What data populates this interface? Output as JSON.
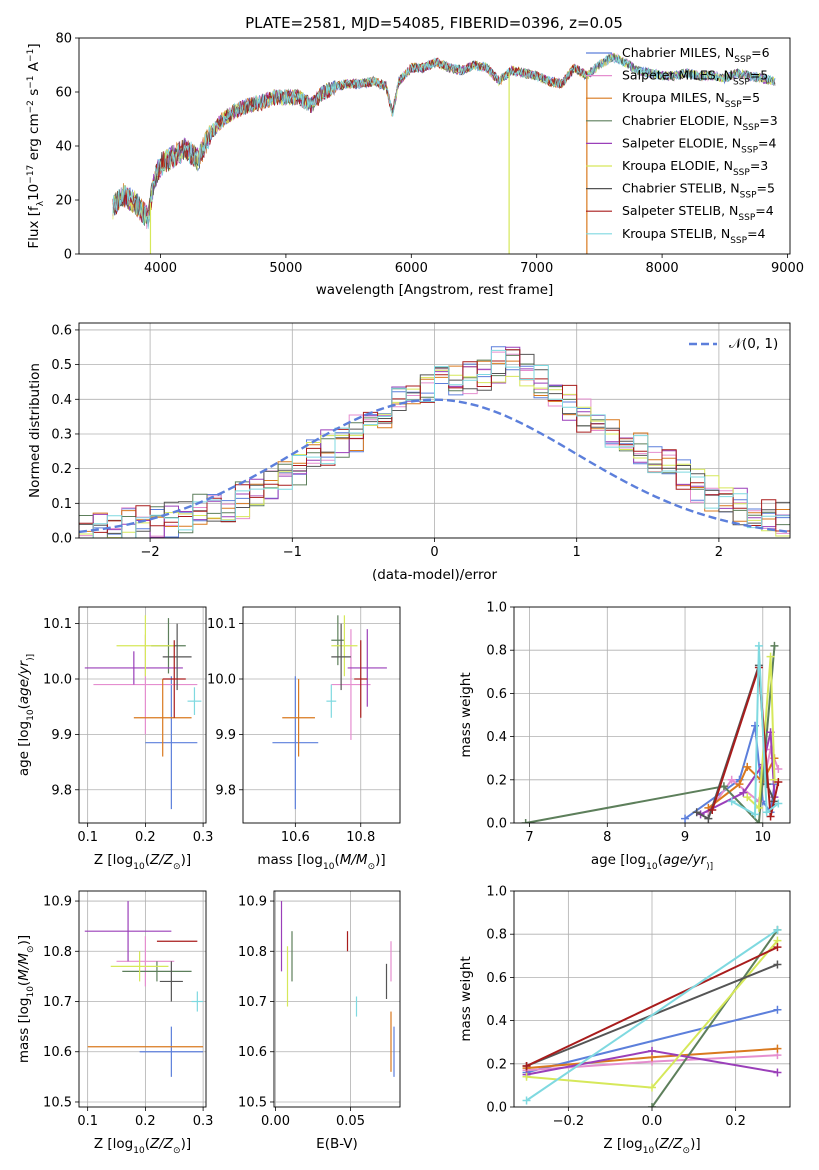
{
  "title": "PLATE=2581, MJD=54085, FIBERID=0396, z=0.05",
  "models": [
    {
      "name": "Chabrier MILES",
      "nssp": "6",
      "color": "#5c7fdb"
    },
    {
      "name": "Salpeter MILES",
      "nssp": "5",
      "color": "#e58ecf"
    },
    {
      "name": "Kroupa MILES",
      "nssp": "5",
      "color": "#d9791f"
    },
    {
      "name": "Chabrier ELODIE",
      "nssp": "3",
      "color": "#5d7f5b"
    },
    {
      "name": "Salpeter ELODIE",
      "nssp": "4",
      "color": "#9a3fb9"
    },
    {
      "name": "Kroupa ELODIE",
      "nssp": "3",
      "color": "#d6e85a"
    },
    {
      "name": "Chabrier STELIB",
      "nssp": "5",
      "color": "#555555"
    },
    {
      "name": "Salpeter STELIB",
      "nssp": "4",
      "color": "#a81c1c"
    },
    {
      "name": "Kroupa STELIB",
      "nssp": "4",
      "color": "#7fd9e0"
    }
  ],
  "legend_prefix": "N",
  "legend_sub": "SSP",
  "chart_data": [
    {
      "type": "line",
      "panel": "spectrum",
      "xlabel": "wavelength [Angstrom, rest frame]",
      "ylabel": "Flux [f",
      "ylabel_parts": [
        "Flux [f",
        "λ",
        "10",
        "−17",
        " erg cm",
        "−2",
        " s",
        "−1",
        " A",
        "−1",
        "]"
      ],
      "xlim": [
        3350,
        9020
      ],
      "ylim": [
        0,
        80
      ],
      "xticks": [
        "4000",
        "5000",
        "6000",
        "7000",
        "8000",
        "9000"
      ],
      "yticks": [
        "0",
        "20",
        "40",
        "60",
        "80"
      ],
      "x": [
        3620,
        3700,
        3800,
        3900,
        3950,
        4000,
        4100,
        4200,
        4300,
        4400,
        4500,
        4600,
        4700,
        4800,
        4900,
        5000,
        5100,
        5200,
        5300,
        5400,
        5500,
        5600,
        5700,
        5800,
        5850,
        5900,
        6000,
        6100,
        6200,
        6300,
        6400,
        6500,
        6600,
        6700,
        6800,
        6900,
        7000,
        7100,
        7200,
        7300,
        7400,
        7500,
        7600,
        7700,
        7800,
        7900,
        8000,
        8100,
        8200,
        8300,
        8400,
        8500,
        8600,
        8700,
        8800,
        8900
      ],
      "flux": [
        17,
        22,
        19,
        13,
        28,
        33,
        36,
        39,
        35,
        45,
        50,
        53,
        55,
        56,
        58,
        58,
        58,
        55,
        60,
        62,
        63,
        63,
        64,
        62,
        52,
        64,
        69,
        69,
        71,
        69,
        68,
        70,
        69,
        64,
        68,
        67,
        66,
        64,
        63,
        69,
        66,
        70,
        73,
        71,
        68,
        67,
        66,
        66,
        67,
        66,
        66,
        65,
        67,
        66,
        65,
        64
      ],
      "drops": [
        {
          "x": 3920,
          "model": 5
        },
        {
          "x": 6780,
          "model": 5
        },
        {
          "x": 7400,
          "model": 2
        }
      ]
    },
    {
      "type": "histogram",
      "panel": "residuals",
      "xlabel": "(data-model)/error",
      "ylabel": "Normed distribution",
      "xlim": [
        -2.5,
        2.5
      ],
      "ylim": [
        0,
        0.62
      ],
      "xticks": [
        "−2",
        "−1",
        "0",
        "1",
        "2"
      ],
      "yticks": [
        "0.0",
        "0.1",
        "0.2",
        "0.3",
        "0.4",
        "0.5",
        "0.6"
      ],
      "gaussian_label": "𝒩(0, 1)",
      "bin_width": 0.1,
      "bin_start": -2.5,
      "base": [
        0.02,
        0.025,
        0.03,
        0.035,
        0.045,
        0.05,
        0.055,
        0.06,
        0.075,
        0.09,
        0.1,
        0.11,
        0.13,
        0.15,
        0.17,
        0.2,
        0.23,
        0.26,
        0.28,
        0.3,
        0.34,
        0.37,
        0.39,
        0.41,
        0.43,
        0.45,
        0.45,
        0.47,
        0.48,
        0.5,
        0.52,
        0.48,
        0.45,
        0.42,
        0.39,
        0.35,
        0.32,
        0.3,
        0.27,
        0.25,
        0.22,
        0.2,
        0.18,
        0.15,
        0.13,
        0.11,
        0.09,
        0.07,
        0.06,
        0.05
      ],
      "gaussian": {
        "mu": 0,
        "sigma": 1
      }
    },
    {
      "type": "scatter",
      "panel": "age-vs-Z",
      "xlabel": "Z [log",
      "xlabel_parts": [
        "Z [log",
        "10",
        "(",
        "Z/Z",
        "⊙",
        ")]"
      ],
      "ylabel_parts": [
        "age  [log",
        "10",
        "(",
        "age/yr",
        ")]"
      ],
      "xlim": [
        0.085,
        0.305
      ],
      "ylim": [
        9.74,
        10.13
      ],
      "xticks": [
        "0.1",
        "0.2",
        "0.3"
      ],
      "yticks": [
        "9.8",
        "9.9",
        "10.0",
        "10.1"
      ],
      "points": [
        {
          "model": 0,
          "x": 0.245,
          "y": 9.885,
          "xerr": 0.045,
          "yerr": 0.12
        },
        {
          "model": 1,
          "x": 0.2,
          "y": 9.99,
          "xerr": 0.09,
          "yerr": 0.09
        },
        {
          "model": 2,
          "x": 0.23,
          "y": 9.93,
          "xerr": 0.05,
          "yerr": 0.07
        },
        {
          "model": 3,
          "x": 0.24,
          "y": 10.06,
          "xerr": 0.03,
          "yerr": 0.05
        },
        {
          "model": 4,
          "x": 0.18,
          "y": 10.02,
          "xerr": 0.085,
          "yerr": 0.03
        },
        {
          "model": 5,
          "x": 0.2,
          "y": 10.06,
          "xerr": 0.05,
          "yerr": 0.055
        },
        {
          "model": 6,
          "x": 0.255,
          "y": 10.04,
          "xerr": 0.025,
          "yerr": 0.06
        },
        {
          "model": 7,
          "x": 0.25,
          "y": 10.0,
          "xerr": 0.02,
          "yerr": 0.07
        },
        {
          "model": 8,
          "x": 0.285,
          "y": 9.96,
          "xerr": 0.012,
          "yerr": 0.025
        }
      ]
    },
    {
      "type": "scatter",
      "panel": "age-vs-mass",
      "xlabel_parts": [
        "mass [log",
        "10",
        "(",
        "M/M",
        "⊙",
        ")]"
      ],
      "xlim": [
        10.44,
        10.92
      ],
      "ylim": [
        9.74,
        10.13
      ],
      "xticks": [
        "10.6",
        "10.8"
      ],
      "yticks": [
        "9.8",
        "9.9",
        "10.0",
        "10.1"
      ],
      "points": [
        {
          "model": 0,
          "x": 10.6,
          "y": 9.885,
          "xerr": 0.07,
          "yerr": 0.12
        },
        {
          "model": 1,
          "x": 10.77,
          "y": 9.99,
          "xerr": 0.06,
          "yerr": 0.1
        },
        {
          "model": 2,
          "x": 10.61,
          "y": 9.93,
          "xerr": 0.05,
          "yerr": 0.07
        },
        {
          "model": 3,
          "x": 10.73,
          "y": 10.07,
          "xerr": 0.02,
          "yerr": 0.045
        },
        {
          "model": 4,
          "x": 10.82,
          "y": 10.02,
          "xerr": 0.06,
          "yerr": 0.07
        },
        {
          "model": 5,
          "x": 10.75,
          "y": 10.06,
          "xerr": 0.04,
          "yerr": 0.055
        },
        {
          "model": 6,
          "x": 10.74,
          "y": 10.04,
          "xerr": 0.03,
          "yerr": 0.06
        },
        {
          "model": 7,
          "x": 10.8,
          "y": 10.0,
          "xerr": 0.02,
          "yerr": 0.07
        },
        {
          "model": 8,
          "x": 10.71,
          "y": 9.96,
          "xerr": 0.015,
          "yerr": 0.03
        }
      ]
    },
    {
      "type": "line",
      "panel": "mass-weight-vs-age",
      "xlabel_parts": [
        "age  [log",
        "10",
        "(",
        "age/yr",
        ")]"
      ],
      "ylabel": "mass weight",
      "xlim": [
        6.8,
        10.35
      ],
      "ylim": [
        0,
        1.0
      ],
      "xticks": [
        "7",
        "8",
        "9",
        "10"
      ],
      "yticks": [
        "0.0",
        "0.2",
        "0.4",
        "0.6",
        "0.8",
        "1.0"
      ],
      "series": [
        {
          "model": 0,
          "x": [
            9.0,
            9.7,
            9.9,
            10.0,
            10.1,
            10.15
          ],
          "y": [
            0.02,
            0.2,
            0.45,
            0.1,
            0.05,
            0.18
          ]
        },
        {
          "model": 1,
          "x": [
            9.3,
            9.6,
            9.95,
            10.1,
            10.2
          ],
          "y": [
            0.05,
            0.2,
            0.1,
            0.34,
            0.25
          ]
        },
        {
          "model": 2,
          "x": [
            9.3,
            9.7,
            9.8,
            10.0,
            10.15
          ],
          "y": [
            0.07,
            0.18,
            0.26,
            0.19,
            0.3
          ]
        },
        {
          "model": 3,
          "x": [
            6.95,
            9.5,
            9.95,
            10.15
          ],
          "y": [
            0.0,
            0.17,
            0.0,
            0.82
          ]
        },
        {
          "model": 4,
          "x": [
            9.2,
            9.75,
            10.0,
            10.1,
            10.15
          ],
          "y": [
            0.04,
            0.14,
            0.27,
            0.42,
            0.12
          ]
        },
        {
          "model": 5,
          "x": [
            9.8,
            9.95,
            10.1,
            10.15
          ],
          "y": [
            0.12,
            0.07,
            0.77,
            0.2
          ]
        },
        {
          "model": 6,
          "x": [
            9.15,
            9.3,
            9.95,
            10.05,
            10.15
          ],
          "y": [
            0.05,
            0.02,
            0.73,
            0.18,
            0.1
          ]
        },
        {
          "model": 7,
          "x": [
            9.35,
            9.95,
            10.1,
            10.2
          ],
          "y": [
            0.06,
            0.72,
            0.03,
            0.19
          ]
        },
        {
          "model": 8,
          "x": [
            9.6,
            9.9,
            9.95,
            10.05,
            10.2
          ],
          "y": [
            0.1,
            0.04,
            0.82,
            0.05,
            0.09
          ]
        }
      ]
    },
    {
      "type": "scatter",
      "panel": "mass-vs-Z",
      "xlabel_parts": [
        "Z [log",
        "10",
        "(",
        "Z/Z",
        "⊙",
        ")]"
      ],
      "ylabel_parts": [
        "mass [log",
        "10",
        "(",
        "M/M",
        "⊙",
        ")]"
      ],
      "xlim": [
        0.085,
        0.305
      ],
      "ylim": [
        10.49,
        10.92
      ],
      "xticks": [
        "0.1",
        "0.2",
        "0.3"
      ],
      "yticks": [
        "10.5",
        "10.6",
        "10.7",
        "10.8",
        "10.9"
      ],
      "points": [
        {
          "model": 0,
          "x": 0.245,
          "y": 10.6,
          "xerr": 0.055,
          "yerr": 0.05
        },
        {
          "model": 1,
          "x": 0.2,
          "y": 10.78,
          "xerr": 0.05,
          "yerr": 0.05
        },
        {
          "model": 2,
          "x": 0.2,
          "y": 10.61,
          "xerr": 0.1,
          "yerr": 0.0
        },
        {
          "model": 3,
          "x": 0.22,
          "y": 10.76,
          "xerr": 0.06,
          "yerr": 0.02
        },
        {
          "model": 4,
          "x": 0.17,
          "y": 10.84,
          "xerr": 0.075,
          "yerr": 0.06
        },
        {
          "model": 5,
          "x": 0.19,
          "y": 10.77,
          "xerr": 0.05,
          "yerr": 0.03
        },
        {
          "model": 6,
          "x": 0.245,
          "y": 10.74,
          "xerr": 0.02,
          "yerr": 0.04
        },
        {
          "model": 7,
          "x": 0.255,
          "y": 10.82,
          "xerr": 0.035,
          "yerr": 0.0
        },
        {
          "model": 8,
          "x": 0.29,
          "y": 10.7,
          "xerr": 0.01,
          "yerr": 0.02
        }
      ]
    },
    {
      "type": "scatter",
      "panel": "mass-vs-EBV",
      "xlabel": "E(B-V)",
      "xlim": [
        -0.001,
        0.083
      ],
      "ylim": [
        10.49,
        10.92
      ],
      "xticks": [
        "0.00",
        "0.05"
      ],
      "yticks": [
        "10.5",
        "10.6",
        "10.7",
        "10.8",
        "10.9"
      ],
      "points": [
        {
          "model": 0,
          "x": 0.079,
          "y": 10.6,
          "xerr": 0,
          "yerr": 0.05
        },
        {
          "model": 1,
          "x": 0.077,
          "y": 10.78,
          "xerr": 0,
          "yerr": 0.04
        },
        {
          "model": 2,
          "x": 0.077,
          "y": 10.62,
          "xerr": 0,
          "yerr": 0.06
        },
        {
          "model": 3,
          "x": 0.011,
          "y": 10.79,
          "xerr": 0,
          "yerr": 0.05
        },
        {
          "model": 4,
          "x": 0.004,
          "y": 10.83,
          "xerr": 0,
          "yerr": 0.07
        },
        {
          "model": 5,
          "x": 0.008,
          "y": 10.75,
          "xerr": 0,
          "yerr": 0.06
        },
        {
          "model": 6,
          "x": 0.074,
          "y": 10.74,
          "xerr": 0,
          "yerr": 0.035
        },
        {
          "model": 7,
          "x": 0.048,
          "y": 10.82,
          "xerr": 0,
          "yerr": 0.02
        },
        {
          "model": 8,
          "x": 0.054,
          "y": 10.69,
          "xerr": 0,
          "yerr": 0.02
        }
      ]
    },
    {
      "type": "line",
      "panel": "mass-weight-vs-Z",
      "xlabel_parts": [
        "Z [log",
        "10",
        "(",
        "Z/Z",
        "⊙",
        ")]"
      ],
      "ylabel": "mass weight",
      "xlim": [
        -0.33,
        0.33
      ],
      "ylim": [
        0,
        1.0
      ],
      "xticks": [
        "−0.2",
        "0.0",
        "0.2"
      ],
      "yticks": [
        "0.0",
        "0.2",
        "0.4",
        "0.6",
        "0.8",
        "1.0"
      ],
      "series": [
        {
          "model": 0,
          "x": [
            -0.3,
            0.3
          ],
          "y": [
            0.16,
            0.45
          ]
        },
        {
          "model": 1,
          "x": [
            -0.3,
            0.0,
            0.3
          ],
          "y": [
            0.17,
            0.21,
            0.24
          ]
        },
        {
          "model": 2,
          "x": [
            -0.3,
            0.0,
            0.3
          ],
          "y": [
            0.18,
            0.23,
            0.27
          ]
        },
        {
          "model": 3,
          "x": [
            0.0,
            0.3
          ],
          "y": [
            0.0,
            0.82
          ]
        },
        {
          "model": 4,
          "x": [
            -0.3,
            0.0,
            0.3
          ],
          "y": [
            0.15,
            0.26,
            0.16
          ]
        },
        {
          "model": 5,
          "x": [
            -0.3,
            0.0,
            0.3
          ],
          "y": [
            0.14,
            0.09,
            0.77
          ]
        },
        {
          "model": 6,
          "x": [
            -0.3,
            0.3
          ],
          "y": [
            0.19,
            0.66
          ]
        },
        {
          "model": 7,
          "x": [
            -0.3,
            0.3
          ],
          "y": [
            0.19,
            0.74
          ]
        },
        {
          "model": 8,
          "x": [
            -0.3,
            0.3
          ],
          "y": [
            0.03,
            0.82
          ]
        }
      ]
    }
  ]
}
